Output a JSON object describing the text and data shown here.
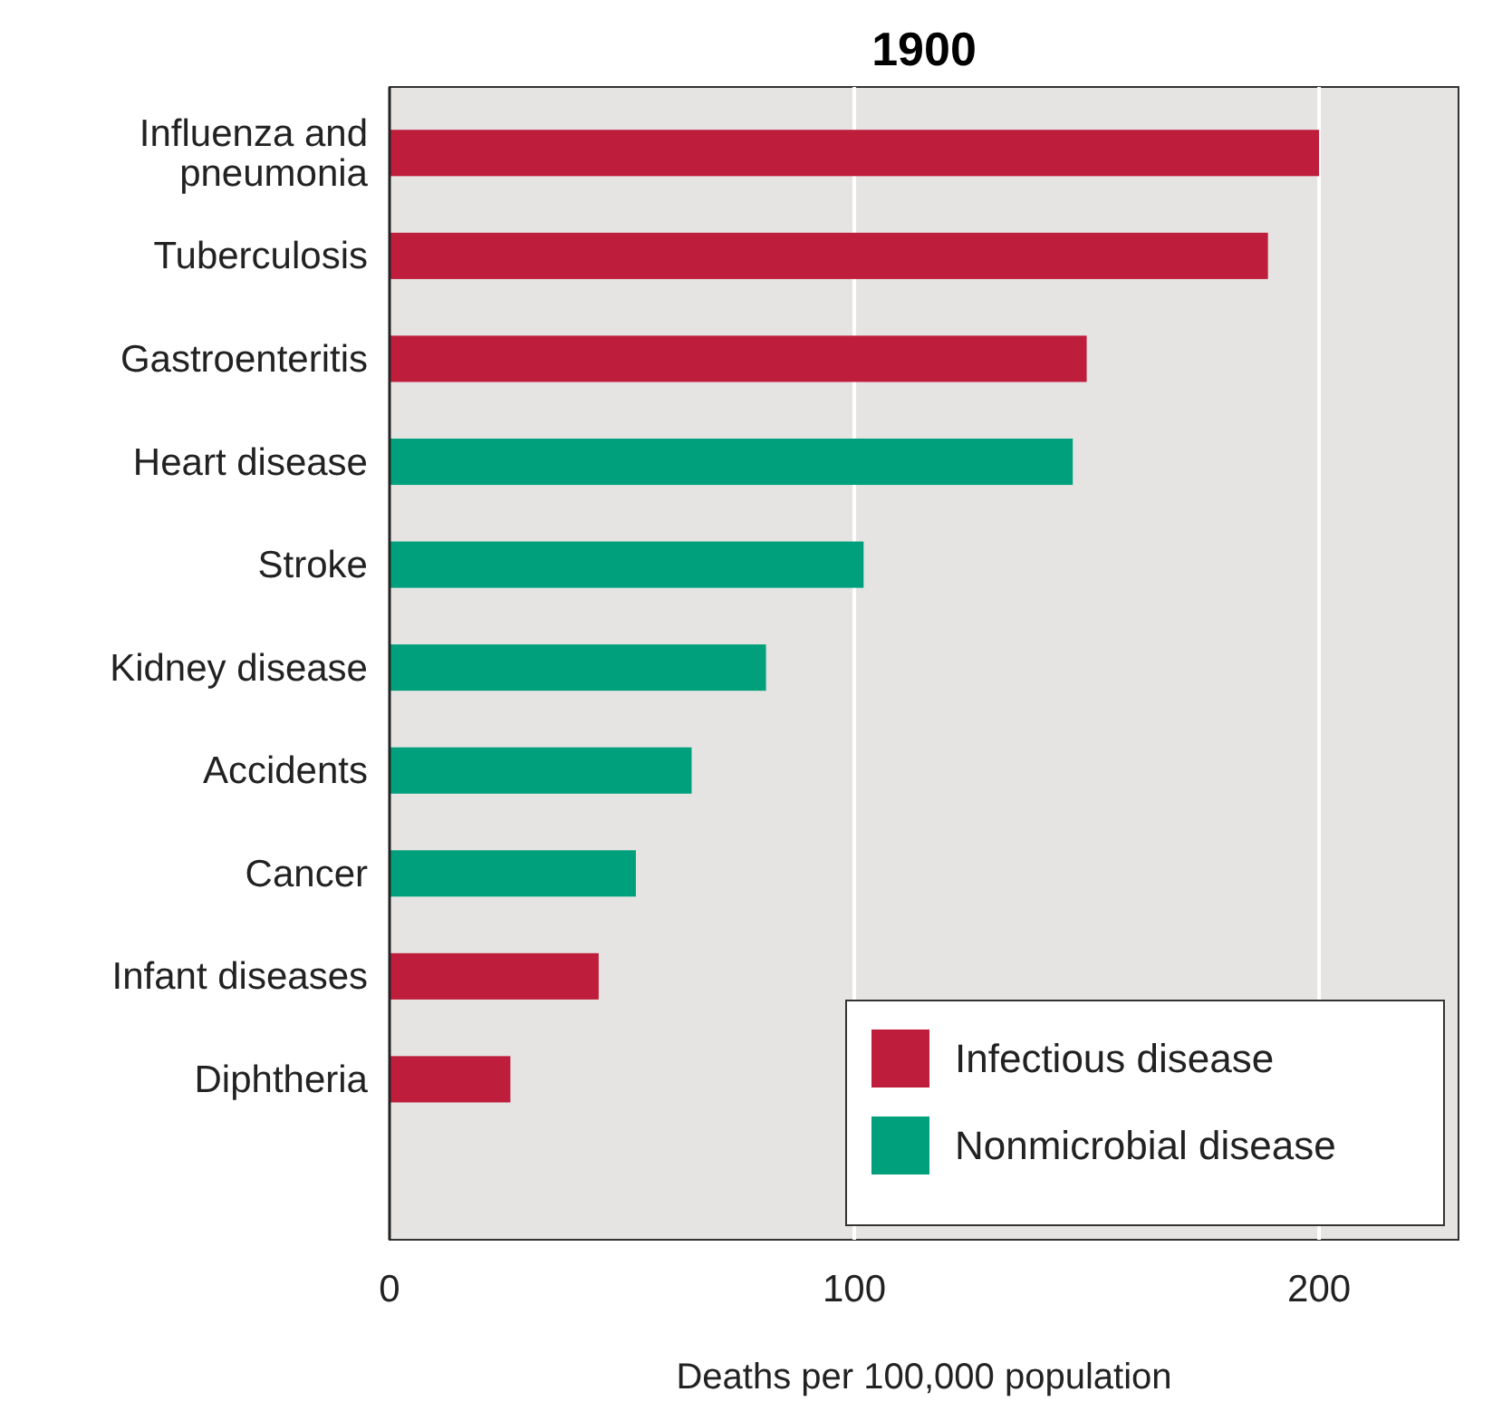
{
  "chart_data": {
    "type": "bar",
    "orientation": "horizontal",
    "title": "1900",
    "xlabel": "Deaths per 100,000 population",
    "categories": [
      "Influenza and pneumonia",
      "Tuberculosis",
      "Gastroenteritis",
      "Heart disease",
      "Stroke",
      "Kidney disease",
      "Accidents",
      "Cancer",
      "Infant diseases",
      "Diphtheria"
    ],
    "series": [
      {
        "name": "Infectious disease",
        "color": "#be1e3c",
        "values": [
          200,
          189,
          150,
          null,
          null,
          null,
          null,
          null,
          45,
          26
        ]
      },
      {
        "name": "Nonmicrobial disease",
        "color": "#00a07c",
        "values": [
          null,
          null,
          null,
          147,
          102,
          81,
          65,
          53,
          null,
          null
        ]
      }
    ],
    "xlim": [
      0,
      230
    ],
    "xticks": [
      0,
      100,
      200
    ],
    "grid": "x",
    "legend": "bottom right"
  }
}
